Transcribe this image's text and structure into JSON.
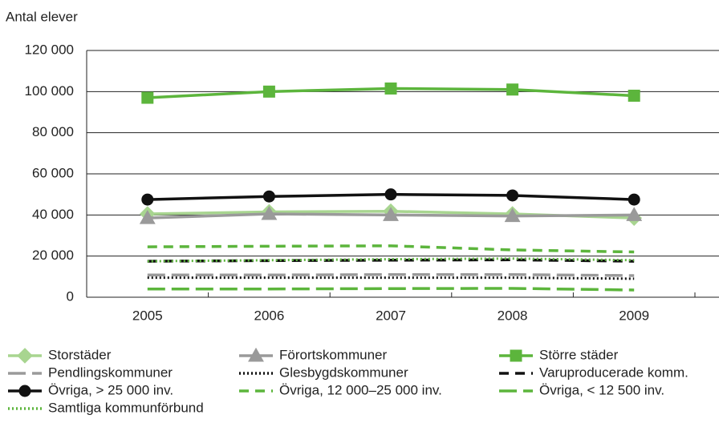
{
  "chart_data": {
    "type": "line",
    "y_label": "Antal elever",
    "categories": [
      "2005",
      "2006",
      "2007",
      "2008",
      "2009"
    ],
    "ylim": [
      0,
      120000
    ],
    "yticks": [
      0,
      {
        "value": 20000,
        "label": "20 000"
      },
      {
        "value": 40000,
        "label": "40 000"
      },
      {
        "value": 60000,
        "label": "60 000"
      },
      {
        "value": 80000,
        "label": "80 000"
      },
      {
        "value": 100000,
        "label": "100 000"
      },
      {
        "value": 120000,
        "label": "120 000"
      }
    ],
    "grid": true,
    "legend": "bottom",
    "series": [
      {
        "name": "Storstäder",
        "color": "#a8d590",
        "marker": "diamond",
        "dash": "solid",
        "values": [
          40500,
          41500,
          41800,
          40500,
          38500
        ]
      },
      {
        "name": "Förortskommuner",
        "color": "#9a9a9a",
        "marker": "triangle",
        "dash": "solid",
        "values": [
          38500,
          40500,
          40000,
          39500,
          40000
        ]
      },
      {
        "name": "Större städer",
        "color": "#5cb53c",
        "marker": "square",
        "dash": "solid",
        "values": [
          97000,
          100000,
          101500,
          101000,
          98000
        ]
      },
      {
        "name": "Pendlingskommuner",
        "color": "#9a9a9a",
        "marker": "none",
        "dash": "longdash",
        "values": [
          10800,
          10800,
          11000,
          11000,
          10500
        ]
      },
      {
        "name": "Glesbygdskommuner",
        "color": "#111111",
        "marker": "none",
        "dash": "dotted",
        "values": [
          9500,
          9500,
          9500,
          9500,
          9000
        ]
      },
      {
        "name": "Varuproducerade komm.",
        "color": "#111111",
        "marker": "none",
        "dash": "dashed",
        "values": [
          17500,
          17800,
          18000,
          18200,
          17500
        ]
      },
      {
        "name": "Övriga, > 25 000 inv.",
        "color": "#111111",
        "marker": "circle",
        "dash": "solid",
        "values": [
          47500,
          49000,
          50000,
          49500,
          47500
        ]
      },
      {
        "name": "Övriga, 12 000–25 000 inv.",
        "color": "#5cb53c",
        "marker": "none",
        "dash": "dashed",
        "values": [
          24500,
          24800,
          25000,
          23000,
          22000
        ]
      },
      {
        "name": "Övriga, < 12 500 inv.",
        "color": "#5cb53c",
        "marker": "none",
        "dash": "longdash",
        "values": [
          4000,
          4000,
          4200,
          4300,
          3500
        ]
      },
      {
        "name": "Samtliga kommunförbund",
        "color": "#5cb53c",
        "marker": "none",
        "dash": "dotted",
        "values": [
          17500,
          18000,
          18500,
          18800,
          18000
        ]
      }
    ]
  }
}
